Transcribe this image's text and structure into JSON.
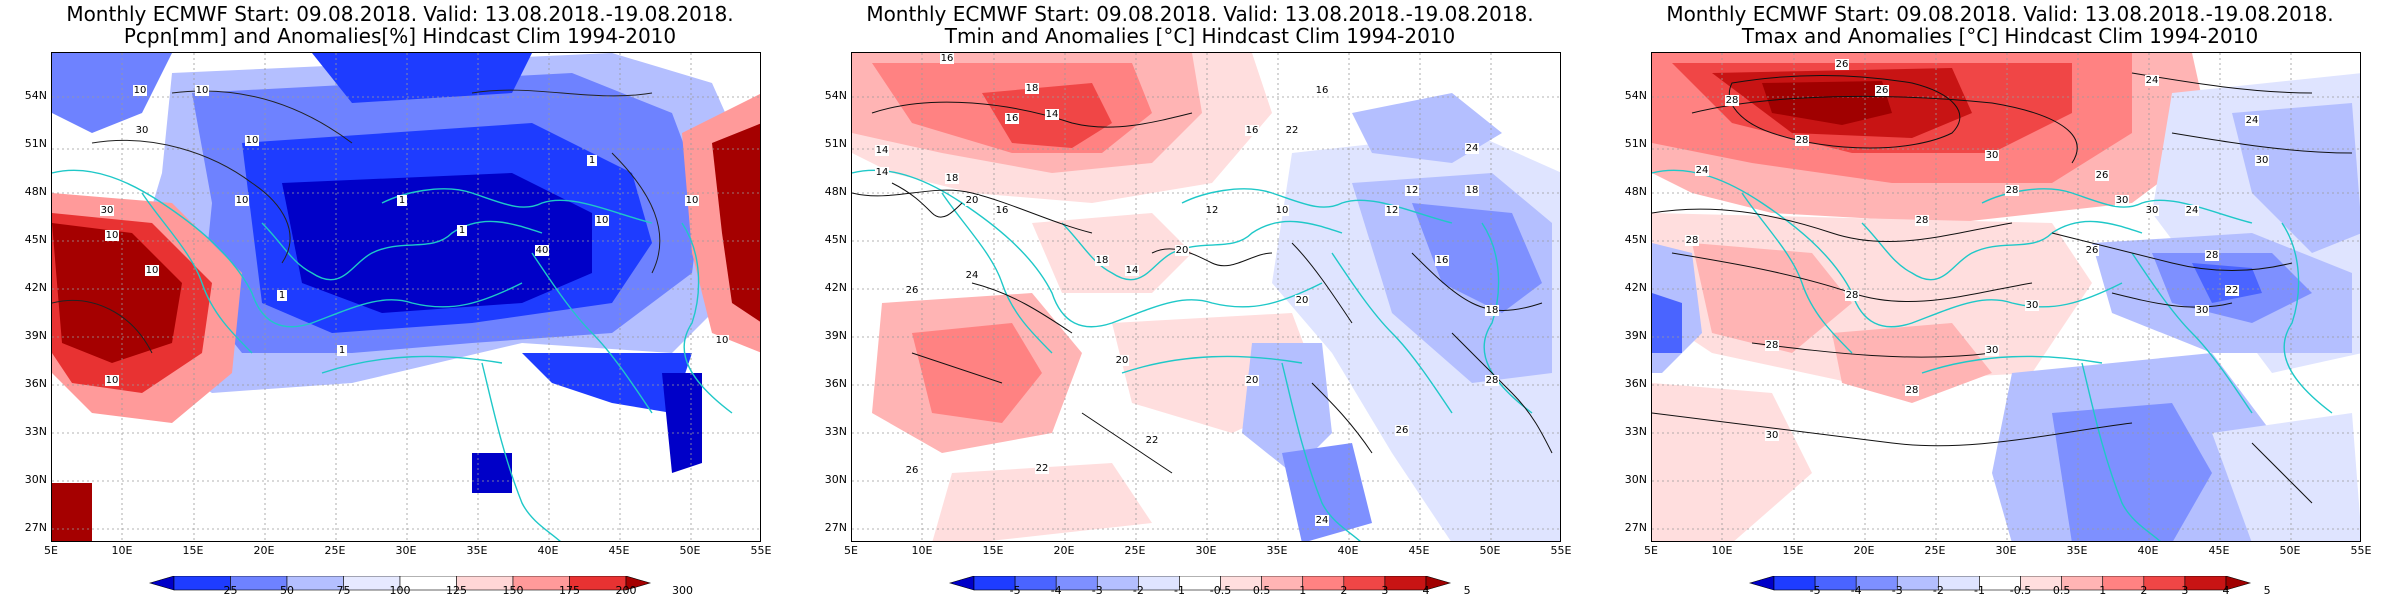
{
  "panels": [
    {
      "title_line1": "Monthly ECMWF Start: 09.08.2018. Valid: 13.08.2018.-19.08.2018.",
      "title_line2": "Pcpn[mm] and Anomalies[%] Hindcast Clim 1994-2010",
      "legend_ticks": [
        "25",
        "50",
        "75",
        "100",
        "125",
        "150",
        "175",
        "200",
        "300"
      ],
      "legend_colors": [
        "#0000c8",
        "#1e3cff",
        "#6e82ff",
        "#b4bfff",
        "#e6e9ff",
        "#ffffff",
        "#ffd6d6",
        "#ff9a9a",
        "#e83232",
        "#a50000"
      ],
      "contour_labels": [
        "10",
        "10",
        "10",
        "30",
        "1",
        "1",
        "1",
        "10",
        "10",
        "40",
        "1",
        "10",
        "30",
        "10",
        "1",
        "10",
        "10",
        "10"
      ]
    },
    {
      "title_line1": "Monthly ECMWF Start: 09.08.2018. Valid: 13.08.2018.-19.08.2018.",
      "title_line2": "Tmin and Anomalies [°C] Hindcast Clim 1994-2010",
      "legend_ticks": [
        "-5",
        "-4",
        "-3",
        "-2",
        "-1",
        "-0.5",
        "0.5",
        "1",
        "2",
        "3",
        "4",
        "5"
      ],
      "legend_colors": [
        "#0000c8",
        "#1e3cff",
        "#4a64ff",
        "#7e90ff",
        "#b4bfff",
        "#dfe4ff",
        "#ffffff",
        "#ffdede",
        "#ffb4b4",
        "#ff8282",
        "#f04646",
        "#c81414",
        "#a00000"
      ],
      "contour_labels": [
        "16",
        "18",
        "14",
        "16",
        "16",
        "16",
        "14",
        "14",
        "18",
        "20",
        "16",
        "22",
        "24",
        "20",
        "18",
        "12",
        "10",
        "14",
        "12",
        "12",
        "18",
        "26",
        "24",
        "20",
        "20",
        "22",
        "22",
        "16",
        "20",
        "24",
        "26",
        "18",
        "28",
        "26"
      ]
    },
    {
      "title_line1": "Monthly ECMWF Start: 09.08.2018. Valid: 13.08.2018.-19.08.2018.",
      "title_line2": "Tmax and Anomalies [°C] Hindcast Clim 1994-2010",
      "legend_ticks": [
        "-5",
        "-4",
        "-3",
        "-2",
        "-1",
        "-0.5",
        "0.5",
        "1",
        "2",
        "3",
        "4",
        "5"
      ],
      "legend_colors": [
        "#0000c8",
        "#1e3cff",
        "#4a64ff",
        "#7e90ff",
        "#b4bfff",
        "#dfe4ff",
        "#ffffff",
        "#ffdede",
        "#ffb4b4",
        "#ff8282",
        "#f04646",
        "#c81414",
        "#a00000"
      ],
      "contour_labels": [
        "24",
        "26",
        "28",
        "26",
        "24",
        "24",
        "28",
        "30",
        "30",
        "26",
        "28",
        "30",
        "24",
        "30",
        "28",
        "26",
        "28",
        "22",
        "28",
        "30",
        "28",
        "30",
        "30",
        "28",
        "28",
        "30"
      ]
    }
  ],
  "map": {
    "lat_labels": [
      "54N",
      "51N",
      "48N",
      "45N",
      "42N",
      "39N",
      "36N",
      "33N",
      "30N",
      "27N"
    ],
    "lon_labels": [
      "5E",
      "10E",
      "15E",
      "20E",
      "25E",
      "30E",
      "35E",
      "40E",
      "45E",
      "50E",
      "55E"
    ],
    "coast_color": "#1fc8c8"
  }
}
